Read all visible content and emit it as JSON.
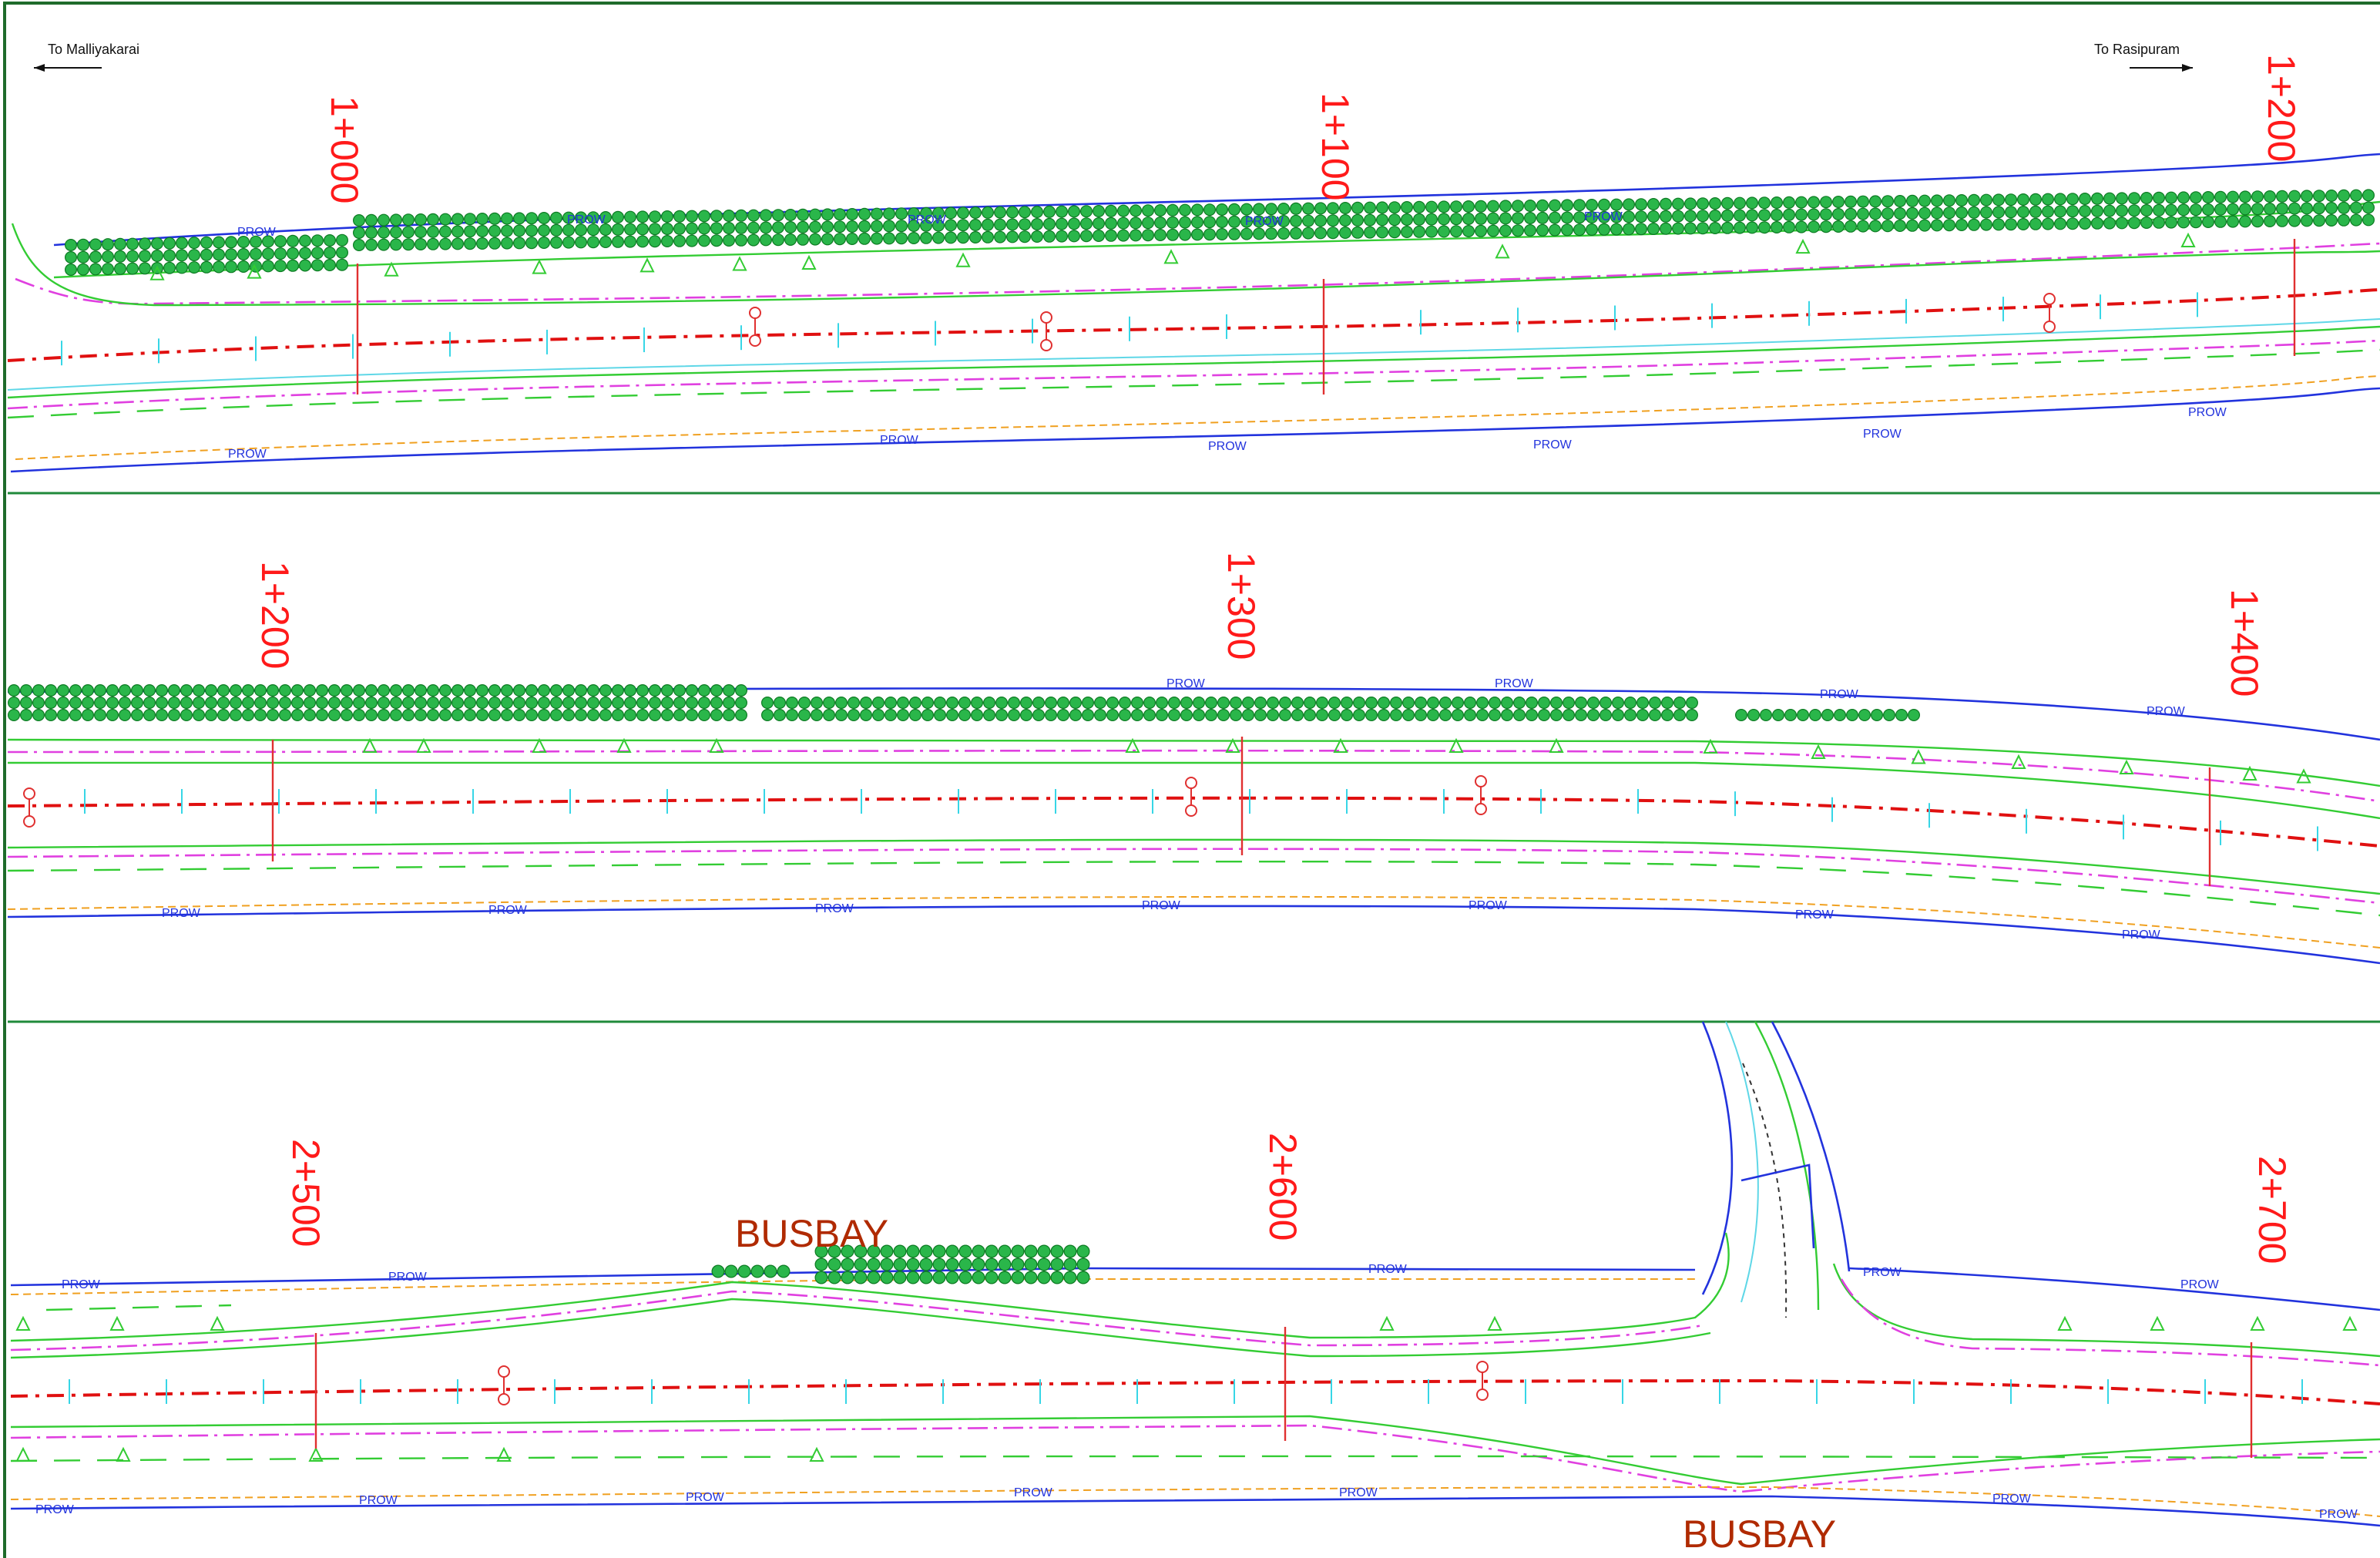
{
  "directions": {
    "left": "To Malliyakarai",
    "right": "To Rasipuram"
  },
  "row_label": "PROW",
  "busbay_label": "BUSBAY",
  "panels": [
    {
      "chainages": [
        "1+000",
        "1+100",
        "1+200"
      ]
    },
    {
      "chainages": [
        "1+200",
        "1+300",
        "1+400"
      ]
    },
    {
      "chainages": [
        "2+500",
        "2+600",
        "2+700"
      ]
    }
  ],
  "colors": {
    "frame": "#1f6b2b",
    "prow": "#2233dd",
    "centerline": "#e01010",
    "chainage_text": "#ff1a1a",
    "busbay_text": "#b02a00",
    "trees": "#2ab64a",
    "verge": "#33cc33",
    "median_marking": "#e040e0"
  },
  "icons": {
    "tree": "tree-icon",
    "pole": "pole-icon",
    "direction": "arrow-left-icon / arrow-right-icon"
  }
}
